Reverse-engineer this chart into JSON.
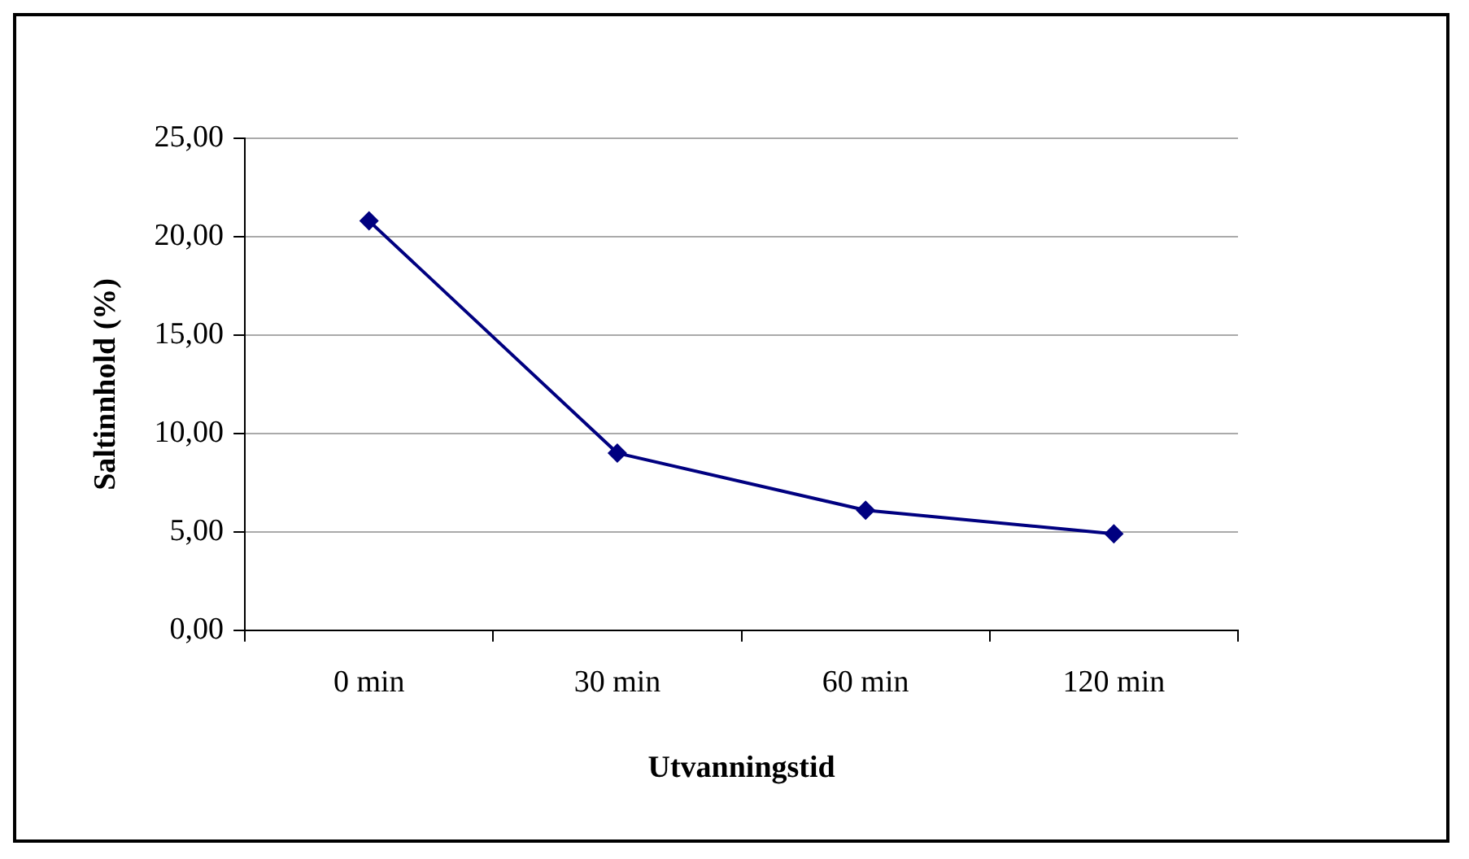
{
  "chart_data": {
    "type": "line",
    "xlabel": "Utvanningstid",
    "ylabel": "Saltinnhold (%)",
    "categories": [
      "0 min",
      "30 min",
      "60 min",
      "120 min"
    ],
    "series": [
      {
        "color": "#000080",
        "values": [
          20.8,
          9.0,
          6.1,
          4.9
        ]
      }
    ],
    "ylim": [
      0,
      25
    ],
    "yticks": [
      {
        "value": 0,
        "label": "0,00"
      },
      {
        "value": 5,
        "label": "5,00"
      },
      {
        "value": 10,
        "label": "10,00"
      },
      {
        "value": 15,
        "label": "15,00"
      },
      {
        "value": 20,
        "label": "20,00"
      },
      {
        "value": 25,
        "label": "25,00"
      }
    ],
    "grid": "y",
    "legend": false,
    "marker": "diamond",
    "line_style": "solid"
  }
}
